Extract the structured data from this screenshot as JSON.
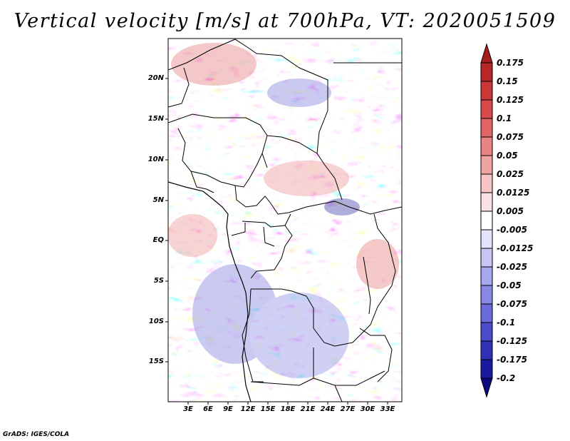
{
  "title": "Vertical velocity [m/s] at 700hPa, VT: 2020051509",
  "axes": {
    "lat_labels": [
      "20N",
      "15N",
      "10N",
      "5N",
      "EQ",
      "5S",
      "10S",
      "15S"
    ],
    "lon_labels": [
      "3E",
      "6E",
      "9E",
      "12E",
      "15E",
      "18E",
      "21E",
      "24E",
      "27E",
      "30E",
      "33E"
    ]
  },
  "colorbar": {
    "labels": [
      "0.175",
      "0.15",
      "0.125",
      "0.1",
      "0.075",
      "0.05",
      "0.025",
      "0.0125",
      "0.005",
      "-0.005",
      "-0.0125",
      "-0.025",
      "-0.05",
      "-0.075",
      "-0.1",
      "-0.125",
      "-0.175",
      "-0.2"
    ],
    "colors": [
      "#a51d1d",
      "#b82727",
      "#c93737",
      "#d84a4a",
      "#e16565",
      "#e98484",
      "#f0a3a3",
      "#f6c4c4",
      "#fbe2e2",
      "#ffffff",
      "#e3e3fb",
      "#c6c6f4",
      "#a7a7ee",
      "#8888e4",
      "#6a6ad8",
      "#4c4ccb",
      "#3030b8",
      "#1a1aa0",
      "#0b0b80"
    ]
  },
  "credit": "GrADS: IGES/COLA"
}
